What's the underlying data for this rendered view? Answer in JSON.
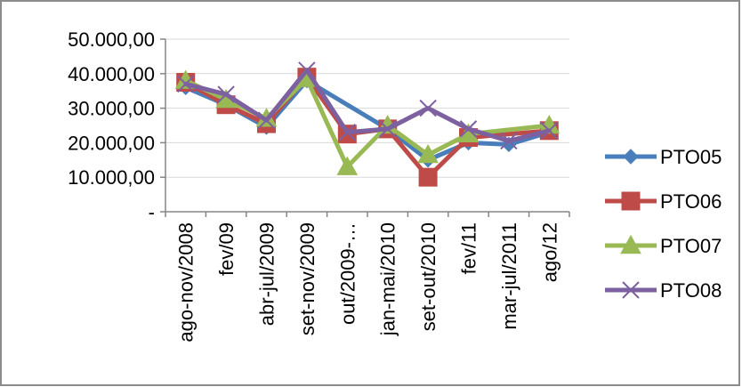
{
  "chart_data": {
    "type": "line",
    "categories": [
      "ago-nov/2008",
      "fev/09",
      "abr-jul/2009",
      "set-nov/2009",
      "out/2009-…",
      "jan-mai/2010",
      "set-out/2010",
      "fev/11",
      "mar-jul/2011",
      "ago/12"
    ],
    "y_ticks": [
      "-",
      "10.000,00",
      "20.000,00",
      "30.000,00",
      "40.000,00",
      "50.000,00"
    ],
    "ylim": [
      0,
      50000
    ],
    "grid": true,
    "legend_position": "right",
    "series": [
      {
        "name": "PTO05",
        "color": "#4A7EBB",
        "marker": "diamond",
        "values": [
          36000,
          31000,
          24500,
          38000,
          null,
          24000,
          15000,
          20000,
          19500,
          23000
        ]
      },
      {
        "name": "PTO06",
        "color": "#BE4B48",
        "marker": "square",
        "values": [
          37500,
          31000,
          25500,
          39000,
          22500,
          24000,
          10000,
          21500,
          null,
          23500
        ]
      },
      {
        "name": "PTO07",
        "color": "#98B954",
        "marker": "triangle",
        "values": [
          38000,
          32500,
          27000,
          38500,
          13000,
          25000,
          16500,
          22500,
          null,
          25000
        ]
      },
      {
        "name": "PTO08",
        "color": "#7D60A0",
        "marker": "x",
        "values": [
          37000,
          34000,
          26500,
          41000,
          23000,
          24000,
          30000,
          24000,
          20500,
          23500
        ]
      }
    ]
  }
}
